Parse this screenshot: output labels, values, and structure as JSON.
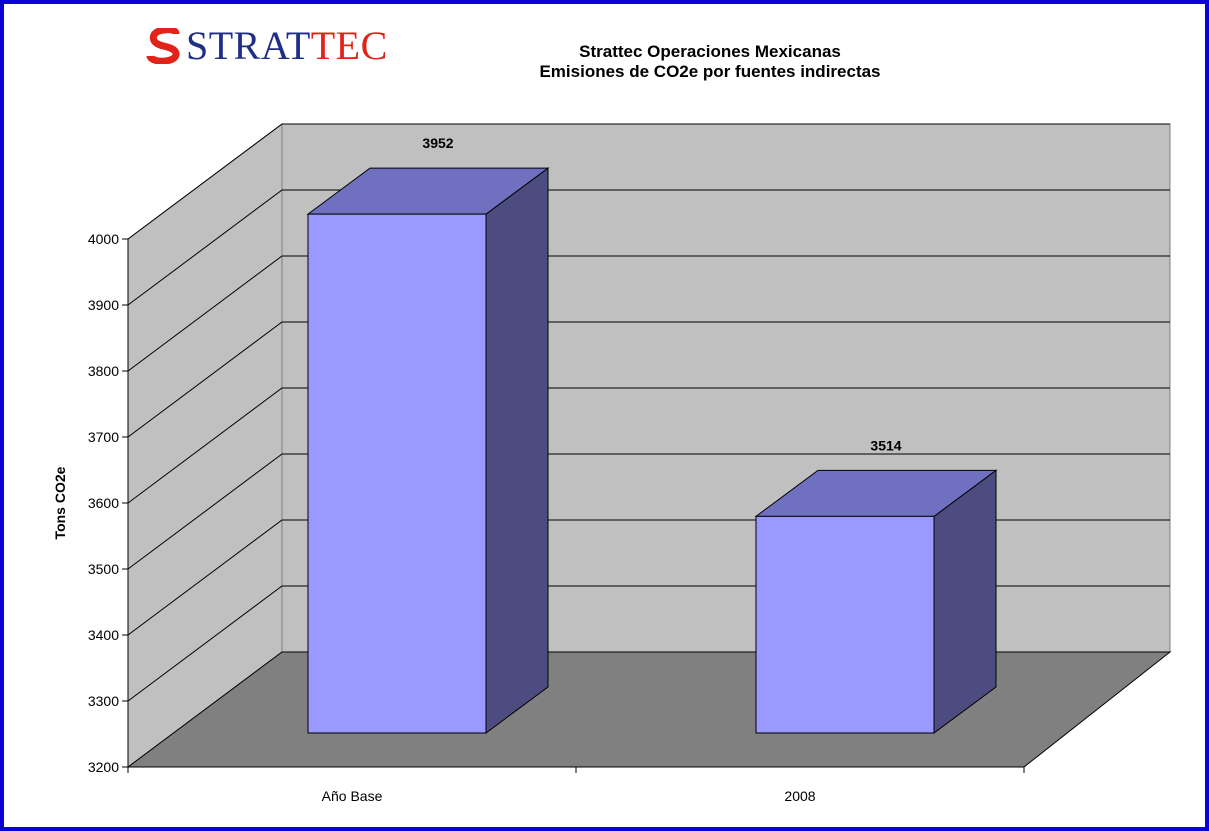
{
  "logo": {
    "text_main": "STRAT",
    "text_accent": "TEC"
  },
  "chart_data": {
    "type": "bar",
    "title": "Strattec Operaciones Mexicanas",
    "subtitle": "Emisiones de CO2e por fuentes indirectas",
    "categories": [
      "Año Base",
      "2008"
    ],
    "values": [
      3952,
      3514
    ],
    "data_labels": [
      "3952",
      "3514"
    ],
    "xlabel": "",
    "ylabel": "Tons CO2e",
    "ylim": [
      3200,
      4000
    ],
    "yticks": [
      3200,
      3300,
      3400,
      3500,
      3600,
      3700,
      3800,
      3900,
      4000
    ],
    "grid": true,
    "legend": "none",
    "style": "3d",
    "colors": {
      "bar_front": "#9999ff",
      "bar_top": "#7070c0",
      "bar_side": "#4c4c80",
      "wall": "#c0c0c0",
      "floor": "#808080",
      "border": "#0a00d8",
      "logo_blue": "#1f2f86",
      "logo_red": "#e2231a"
    }
  }
}
